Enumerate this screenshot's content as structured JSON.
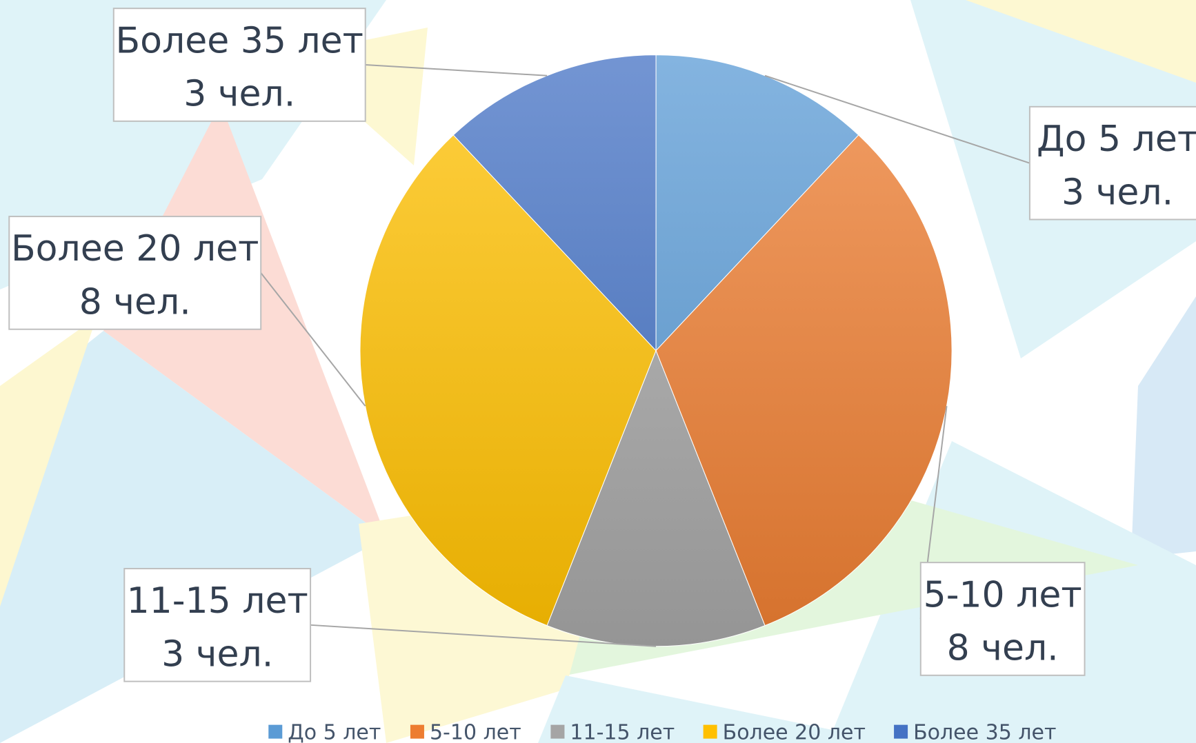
{
  "chart_data": {
    "type": "pie",
    "categories": [
      "До 5 лет",
      "5-10 лет",
      "11-15 лет",
      "Более 20 лет",
      "Более 35 лет"
    ],
    "values": [
      3,
      8,
      3,
      8,
      3
    ],
    "value_labels": [
      "3 чел.",
      "8 чел.",
      "3 чел.",
      "8 чел.",
      "3 чел."
    ],
    "colors": [
      "#5b9bd5",
      "#ed7d31",
      "#a5a5a5",
      "#ffc000",
      "#4472c4"
    ],
    "legend": "bottom"
  }
}
